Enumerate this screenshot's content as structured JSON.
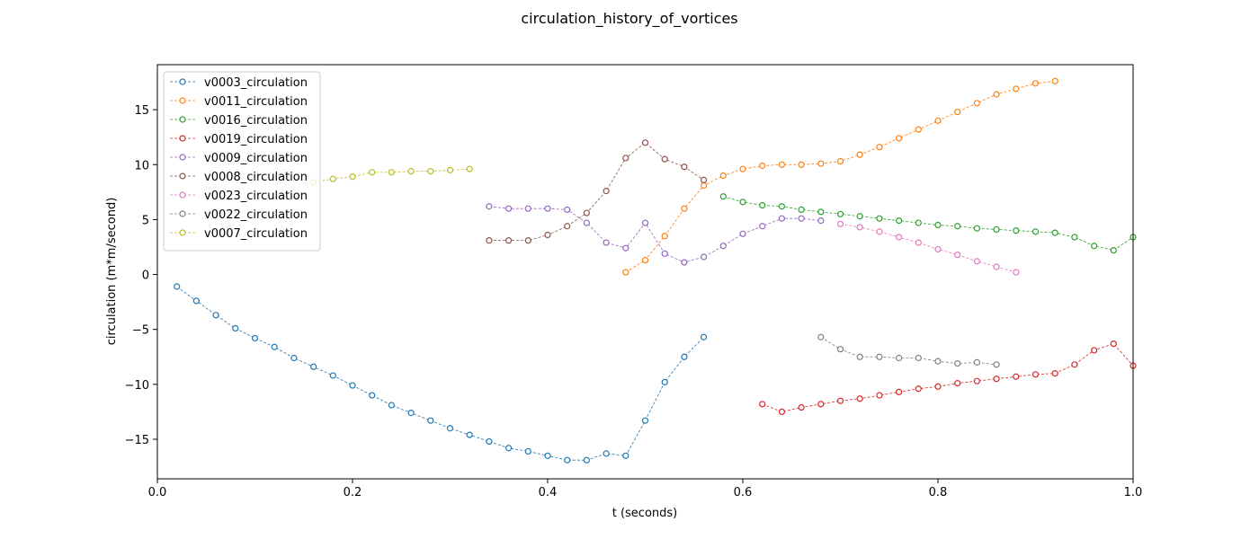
{
  "chart_data": {
    "type": "line",
    "title": "circulation_history_of_vortices",
    "xlabel": "t (seconds)",
    "ylabel": "circulation (m*m/second)",
    "xlim": [
      0.0,
      1.0
    ],
    "ylim": [
      -18.6,
      19.1
    ],
    "xticks": [
      0.0,
      0.2,
      0.4,
      0.6,
      0.8,
      1.0
    ],
    "xtick_labels": [
      "0.0",
      "0.2",
      "0.4",
      "0.6",
      "0.8",
      "1.0"
    ],
    "yticks": [
      -15,
      -10,
      -5,
      0,
      5,
      10,
      15
    ],
    "ytick_labels": [
      "−15",
      "−10",
      "−5",
      "0",
      "5",
      "10",
      "15"
    ],
    "grid": false,
    "legend_position": "top-left",
    "line_style": "dashed",
    "marker": "open-circle",
    "series": [
      {
        "name": "v0003_circulation",
        "color": "#1f77b4",
        "x": [
          0.02,
          0.04,
          0.06,
          0.08,
          0.1,
          0.12,
          0.14,
          0.16,
          0.18,
          0.2,
          0.22,
          0.24,
          0.26,
          0.28,
          0.3,
          0.32,
          0.34,
          0.36,
          0.38,
          0.4,
          0.42,
          0.44,
          0.46,
          0.48,
          0.5,
          0.52,
          0.54,
          0.56
        ],
        "y": [
          -1.1,
          -2.4,
          -3.7,
          -4.9,
          -5.8,
          -6.6,
          -7.6,
          -8.4,
          -9.2,
          -10.1,
          -11.0,
          -11.9,
          -12.6,
          -13.3,
          -14.0,
          -14.6,
          -15.2,
          -15.8,
          -16.1,
          -16.5,
          -16.9,
          -16.9,
          -16.3,
          -16.5,
          -13.3,
          -9.8,
          -7.5,
          -5.7
        ]
      },
      {
        "name": "v0011_circulation",
        "color": "#ff7f0e",
        "x": [
          0.48,
          0.5,
          0.52,
          0.54,
          0.56,
          0.58,
          0.6,
          0.62,
          0.64,
          0.66,
          0.68,
          0.7,
          0.72,
          0.74,
          0.76,
          0.78,
          0.8,
          0.82,
          0.84,
          0.86,
          0.88,
          0.9,
          0.92
        ],
        "y": [
          0.2,
          1.3,
          3.5,
          6.0,
          8.1,
          9.0,
          9.6,
          9.9,
          10.0,
          10.0,
          10.1,
          10.3,
          10.9,
          11.6,
          12.4,
          13.2,
          14.0,
          14.8,
          15.6,
          16.4,
          16.9,
          17.4,
          17.6
        ]
      },
      {
        "name": "v0016_circulation",
        "color": "#2ca02c",
        "x": [
          0.58,
          0.6,
          0.62,
          0.64,
          0.66,
          0.68,
          0.7,
          0.72,
          0.74,
          0.76,
          0.78,
          0.8,
          0.82,
          0.84,
          0.86,
          0.88,
          0.9,
          0.92,
          0.94,
          0.96,
          0.98,
          1.0
        ],
        "y": [
          7.1,
          6.6,
          6.3,
          6.2,
          5.9,
          5.7,
          5.5,
          5.3,
          5.1,
          4.9,
          4.7,
          4.5,
          4.4,
          4.2,
          4.1,
          4.0,
          3.9,
          3.8,
          3.4,
          2.6,
          2.2,
          3.4
        ]
      },
      {
        "name": "v0019_circulation",
        "color": "#d62728",
        "x": [
          0.62,
          0.64,
          0.66,
          0.68,
          0.7,
          0.72,
          0.74,
          0.76,
          0.78,
          0.8,
          0.82,
          0.84,
          0.86,
          0.88,
          0.9,
          0.92,
          0.94,
          0.96,
          0.98,
          1.0
        ],
        "y": [
          -11.8,
          -12.5,
          -12.1,
          -11.8,
          -11.5,
          -11.3,
          -11.0,
          -10.7,
          -10.4,
          -10.2,
          -9.9,
          -9.7,
          -9.5,
          -9.3,
          -9.1,
          -9.0,
          -8.2,
          -6.9,
          -6.3,
          -8.3
        ]
      },
      {
        "name": "v0009_circulation",
        "color": "#9467bd",
        "x": [
          0.34,
          0.36,
          0.38,
          0.4,
          0.42,
          0.44,
          0.46,
          0.48,
          0.5,
          0.52,
          0.54,
          0.56,
          0.58,
          0.6,
          0.62,
          0.64,
          0.66,
          0.68
        ],
        "y": [
          6.2,
          6.0,
          6.0,
          6.0,
          5.9,
          4.7,
          2.9,
          2.4,
          4.7,
          1.9,
          1.1,
          1.6,
          2.6,
          3.7,
          4.4,
          5.1,
          5.1,
          4.9
        ]
      },
      {
        "name": "v0008_circulation",
        "color": "#8c564b",
        "x": [
          0.34,
          0.36,
          0.38,
          0.4,
          0.42,
          0.44,
          0.46,
          0.48,
          0.5,
          0.52,
          0.54,
          0.56
        ],
        "y": [
          3.1,
          3.1,
          3.1,
          3.6,
          4.4,
          5.6,
          7.6,
          10.6,
          12.0,
          10.5,
          9.8,
          8.6
        ]
      },
      {
        "name": "v0023_circulation",
        "color": "#e377c2",
        "x": [
          0.7,
          0.72,
          0.74,
          0.76,
          0.78,
          0.8,
          0.82,
          0.84,
          0.86,
          0.88
        ],
        "y": [
          4.6,
          4.3,
          3.9,
          3.4,
          2.9,
          2.3,
          1.8,
          1.2,
          0.7,
          0.2
        ]
      },
      {
        "name": "v0022_circulation",
        "color": "#7f7f7f",
        "x": [
          0.68,
          0.7,
          0.72,
          0.74,
          0.76,
          0.78,
          0.8,
          0.82,
          0.84,
          0.86
        ],
        "y": [
          -5.7,
          -6.8,
          -7.5,
          -7.5,
          -7.6,
          -7.6,
          -7.9,
          -8.1,
          -8.0,
          -8.2
        ]
      },
      {
        "name": "v0007_circulation",
        "color": "#bcbd22",
        "x": [
          0.16,
          0.18,
          0.2,
          0.22,
          0.24,
          0.26,
          0.28,
          0.3,
          0.32
        ],
        "y": [
          8.4,
          8.7,
          8.9,
          9.3,
          9.3,
          9.4,
          9.4,
          9.5,
          9.6
        ]
      }
    ]
  }
}
